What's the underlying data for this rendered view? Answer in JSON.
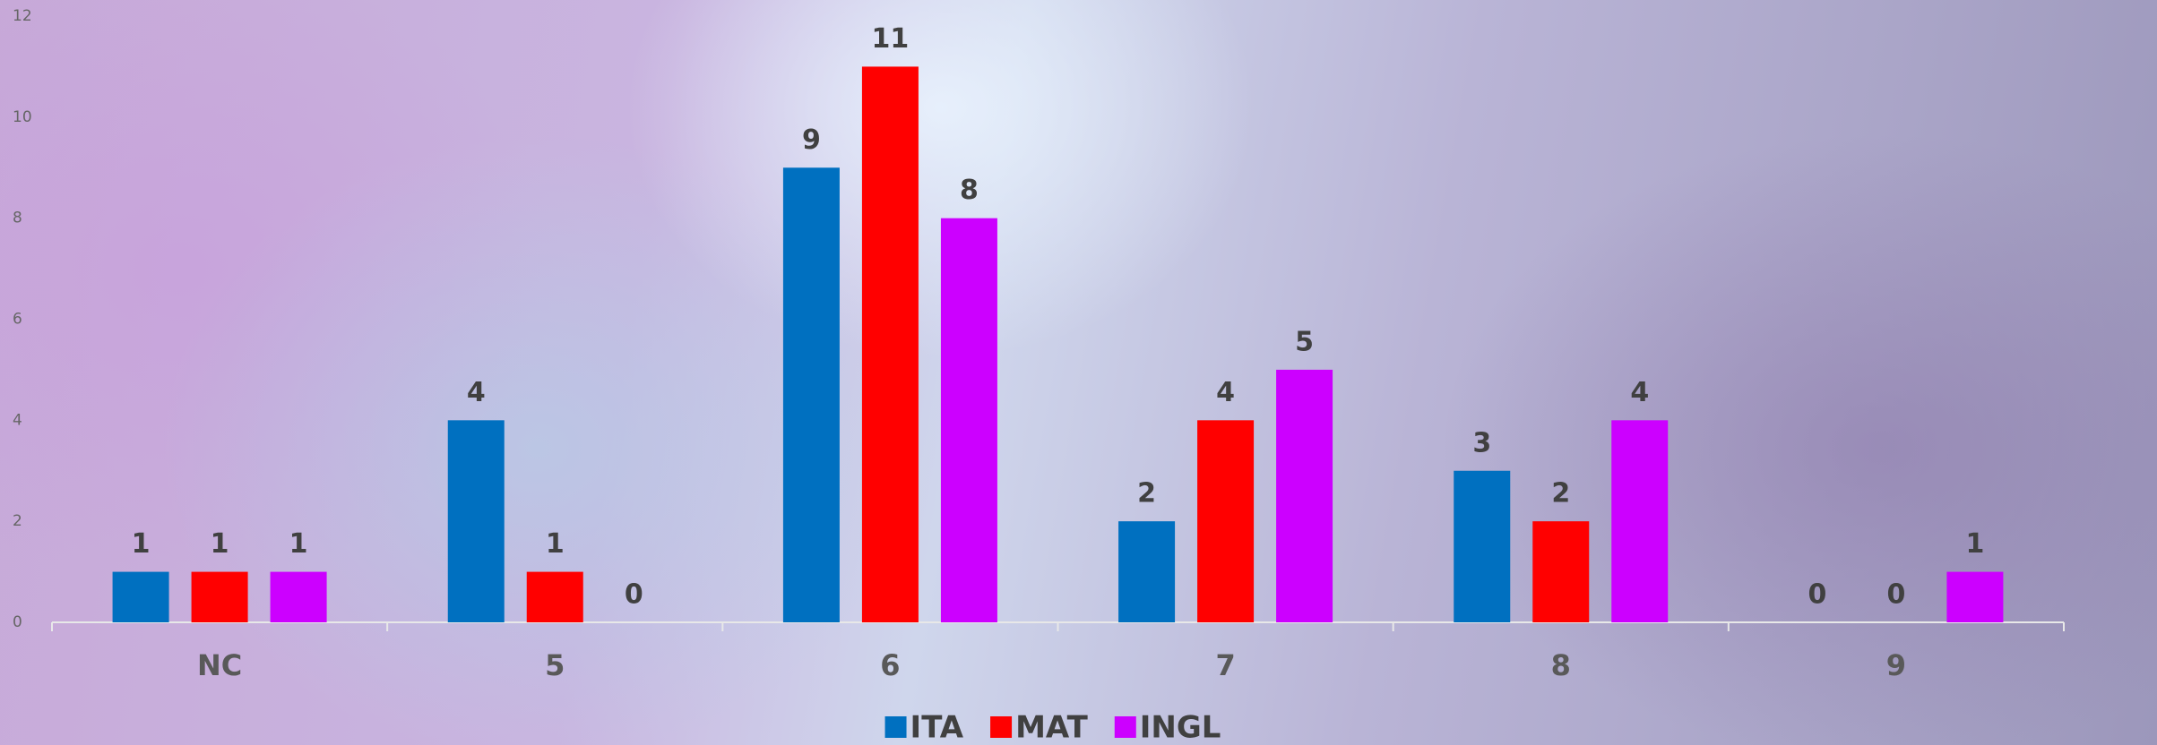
{
  "chart_data": {
    "type": "bar",
    "categories": [
      "NC",
      "5",
      "6",
      "7",
      "8",
      "9"
    ],
    "series": [
      {
        "name": "ITA",
        "color": "#0070c0",
        "values": [
          1,
          4,
          9,
          2,
          3,
          0
        ]
      },
      {
        "name": "MAT",
        "color": "#ff0000",
        "values": [
          1,
          1,
          11,
          4,
          2,
          0
        ]
      },
      {
        "name": "INGL",
        "color": "#cc00ff",
        "values": [
          1,
          0,
          8,
          5,
          4,
          1
        ]
      }
    ],
    "ylim": [
      0,
      12
    ],
    "yticks": [
      0,
      2,
      4,
      6,
      8,
      10,
      12
    ],
    "legend": "bottom",
    "data_labels": true
  }
}
